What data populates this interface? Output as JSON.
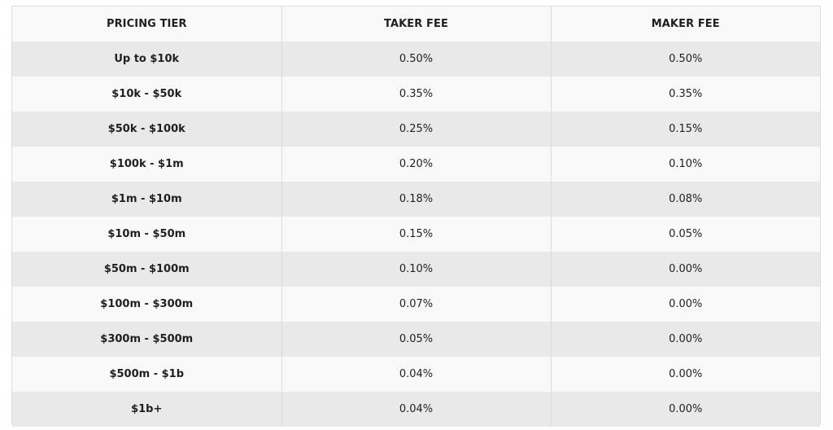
{
  "table": {
    "headers": [
      "PRICING TIER",
      "TAKER FEE",
      "MAKER FEE"
    ],
    "rows": [
      {
        "tier": "Up to $10k",
        "taker": "0.50%",
        "maker": "0.50%"
      },
      {
        "tier": "$10k - $50k",
        "taker": "0.35%",
        "maker": "0.35%"
      },
      {
        "tier": "$50k - $100k",
        "taker": "0.25%",
        "maker": "0.15%"
      },
      {
        "tier": "$100k - $1m",
        "taker": "0.20%",
        "maker": "0.10%"
      },
      {
        "tier": "$1m - $10m",
        "taker": "0.18%",
        "maker": "0.08%"
      },
      {
        "tier": "$10m - $50m",
        "taker": "0.15%",
        "maker": "0.05%"
      },
      {
        "tier": "$50m - $100m",
        "taker": "0.10%",
        "maker": "0.00%"
      },
      {
        "tier": "$100m - $300m",
        "taker": "0.07%",
        "maker": "0.00%"
      },
      {
        "tier": "$300m - $500m",
        "taker": "0.05%",
        "maker": "0.00%"
      },
      {
        "tier": "$500m - $1b",
        "taker": "0.04%",
        "maker": "0.00%"
      },
      {
        "tier": "$1b+",
        "taker": "0.04%",
        "maker": "0.00%"
      }
    ]
  }
}
